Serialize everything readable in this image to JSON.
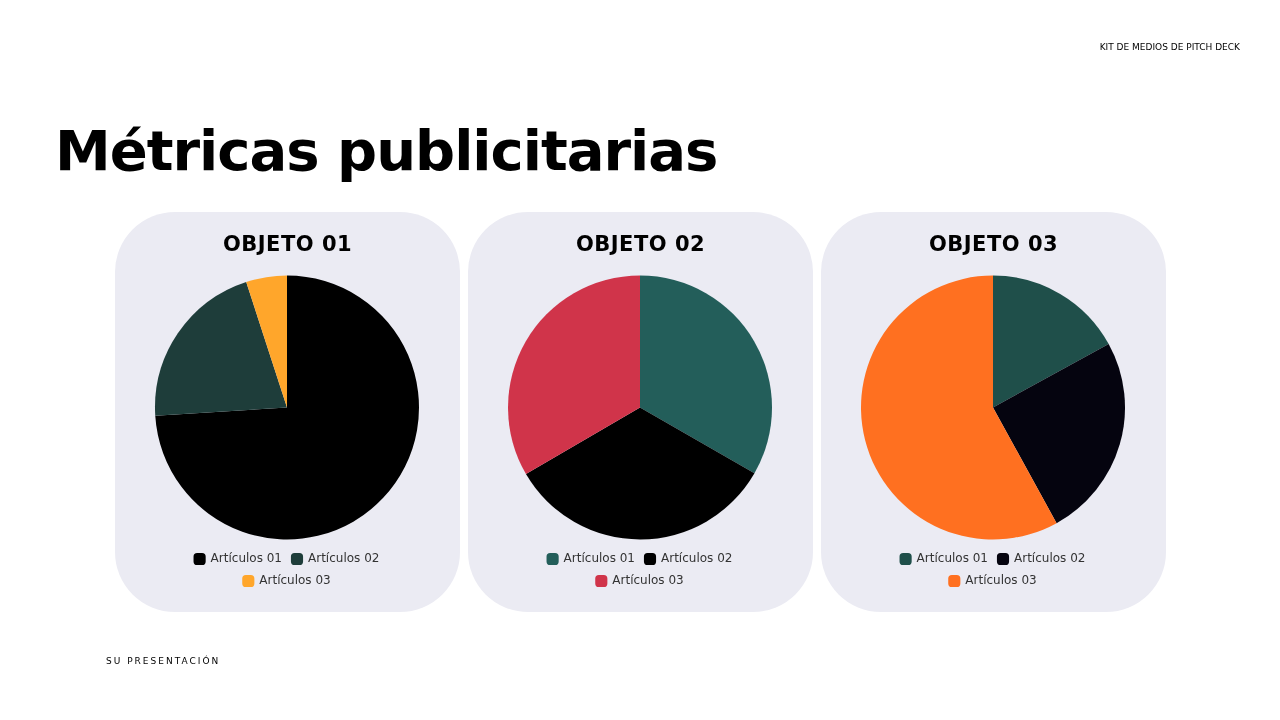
{
  "chart_data": [
    {
      "type": "other",
      "title": "Métricas publicitarias",
      "annotations": [
        "KIT DE MEDIOS DE PITCH DECK",
        "SU PRESENTACIÓN"
      ]
    },
    {
      "type": "pie",
      "title": "OBJETO 01",
      "categories": [
        "Artículos 01",
        "Artículos 02",
        "Artículos 03"
      ],
      "values": [
        74,
        21,
        5
      ],
      "colors": [
        "#000000",
        "#1e3d3a",
        "#ffa62b"
      ],
      "legend": "bottom"
    },
    {
      "type": "pie",
      "title": "OBJETO 02",
      "categories": [
        "Artículos 01",
        "Artículos 02",
        "Artículos 03"
      ],
      "values": [
        33.3,
        33.3,
        33.4
      ],
      "colors": [
        "#235e5a",
        "#000000",
        "#d0344a"
      ],
      "legend": "bottom"
    },
    {
      "type": "pie",
      "title": "OBJETO 03",
      "categories": [
        "Artículos 01",
        "Artículos 02",
        "Artículos 03"
      ],
      "values": [
        17,
        25,
        58
      ],
      "colors": [
        "#1f4f4a",
        "#05040f",
        "#ff7020"
      ],
      "legend": "bottom"
    }
  ]
}
